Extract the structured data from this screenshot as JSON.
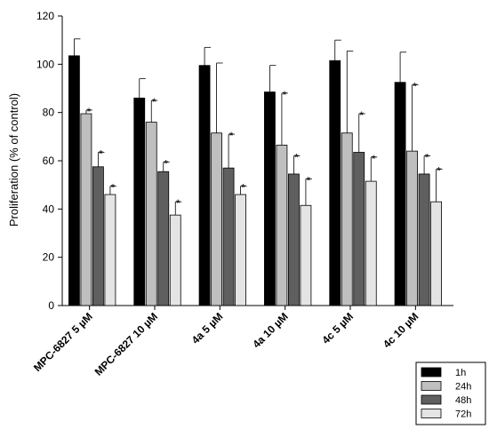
{
  "chart_data": {
    "type": "bar",
    "title": "",
    "xlabel": "",
    "ylabel": "Proliferation (% of control)",
    "ylim": [
      0,
      120
    ],
    "yticks": [
      0,
      20,
      40,
      60,
      80,
      100,
      120
    ],
    "legend_position": "bottom-right",
    "categories": [
      "MPC-6827 5 µM",
      "MPC-6827 10 µM",
      "4a 5 µM",
      "4a 10 µM",
      "4c 5 µM",
      "4c 10 µM"
    ],
    "significance_marker": "*",
    "series": [
      {
        "name": "1h",
        "color": "#000000",
        "values": [
          103.5,
          86,
          99.5,
          88.5,
          101.5,
          92.5
        ],
        "errors": [
          7,
          8,
          7.5,
          11,
          8.5,
          12.5
        ],
        "significant": [
          false,
          false,
          false,
          false,
          false,
          false
        ]
      },
      {
        "name": "24h",
        "color": "#bfbfbf",
        "values": [
          79.5,
          76,
          71.5,
          66.5,
          71.5,
          64
        ],
        "errors": [
          1.5,
          9,
          29,
          21.5,
          34,
          27.5
        ],
        "significant": [
          true,
          true,
          false,
          true,
          false,
          true
        ]
      },
      {
        "name": "48h",
        "color": "#5f5f5f",
        "values": [
          57.5,
          55.5,
          57,
          54.5,
          63.5,
          54.5
        ],
        "errors": [
          6,
          4,
          14,
          7.5,
          16,
          7.5
        ],
        "significant": [
          true,
          true,
          true,
          true,
          true,
          true
        ]
      },
      {
        "name": "72h",
        "color": "#e4e4e4",
        "values": [
          46,
          37.5,
          46,
          41.5,
          51.5,
          43
        ],
        "errors": [
          3.5,
          5.5,
          3.5,
          11,
          10,
          13.5
        ],
        "significant": [
          true,
          true,
          true,
          true,
          true,
          true
        ]
      }
    ]
  }
}
